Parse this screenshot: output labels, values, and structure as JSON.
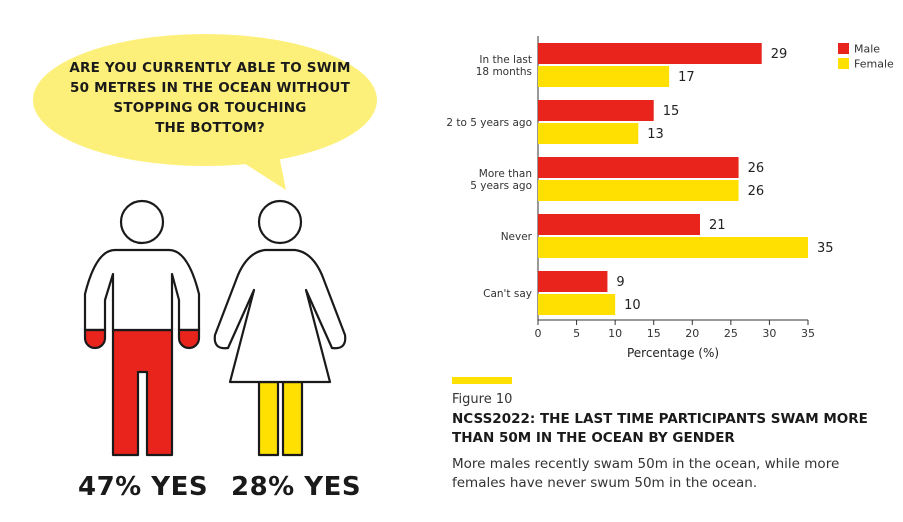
{
  "infographic": {
    "question_lines": [
      "ARE YOU CURRENTLY ABLE TO SWIM",
      "50 METRES IN THE OCEAN WITHOUT",
      "STOPPING OR TOUCHING",
      "THE BOTTOM?"
    ],
    "male_yes": "47% YES",
    "female_yes": "28% YES",
    "male_color": "#e8241c",
    "female_color": "#ffe000",
    "bubble_color": "#fdf07a"
  },
  "figure": {
    "label": "Figure 10",
    "title": "NCSS2022: THE LAST TIME PARTICIPANTS SWAM MORE THAN 50M IN THE OCEAN BY GENDER",
    "caption": "More males recently swam 50m in the ocean, while more females have never swum 50m in the ocean."
  },
  "chart_data": {
    "type": "bar",
    "orientation": "horizontal",
    "categories": [
      [
        "In the last",
        "18 months"
      ],
      [
        "2 to 5 years ago"
      ],
      [
        "More than",
        "5 years ago"
      ],
      [
        "Never"
      ],
      [
        "Can't say"
      ]
    ],
    "series": [
      {
        "name": "Male",
        "color": "#e8241c",
        "values": [
          29,
          15,
          26,
          21,
          9
        ]
      },
      {
        "name": "Female",
        "color": "#ffe000",
        "values": [
          17,
          13,
          26,
          35,
          10
        ]
      }
    ],
    "xlabel": "Percentage (%)",
    "ylabel": "",
    "xlim": [
      0,
      35
    ],
    "xticks": [
      0,
      5,
      10,
      15,
      20,
      25,
      30,
      35
    ],
    "data_labels": true,
    "legend": "top-right",
    "grid": false
  }
}
